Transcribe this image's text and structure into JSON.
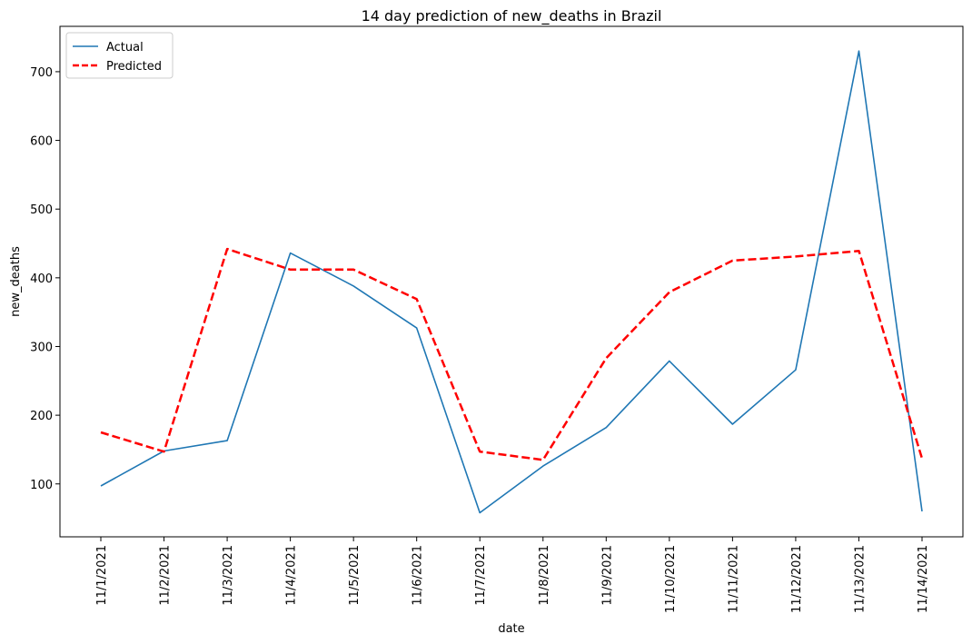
{
  "chart_data": {
    "type": "line",
    "title": "14 day prediction of new_deaths in Brazil",
    "xlabel": "date",
    "ylabel": "new_deaths",
    "categories": [
      "11/1/2021",
      "11/2/2021",
      "11/3/2021",
      "11/4/2021",
      "11/5/2021",
      "11/6/2021",
      "11/7/2021",
      "11/8/2021",
      "11/9/2021",
      "11/10/2021",
      "11/11/2021",
      "11/12/2021",
      "11/13/2021",
      "11/14/2021"
    ],
    "yticks": [
      100,
      200,
      300,
      400,
      500,
      600,
      700
    ],
    "ylim": [
      23,
      766
    ],
    "grid": false,
    "legend_position": "top-left",
    "series": [
      {
        "name": "Actual",
        "color": "#1f77b4",
        "style": "solid",
        "values": [
          97,
          148,
          163,
          436,
          388,
          327,
          58,
          126,
          182,
          279,
          187,
          266,
          730,
          60
        ]
      },
      {
        "name": "Predicted",
        "color": "#ff0000",
        "style": "dashed",
        "values": [
          175,
          147,
          442,
          412,
          412,
          369,
          147,
          135,
          283,
          379,
          425,
          431,
          439,
          137
        ]
      }
    ]
  }
}
